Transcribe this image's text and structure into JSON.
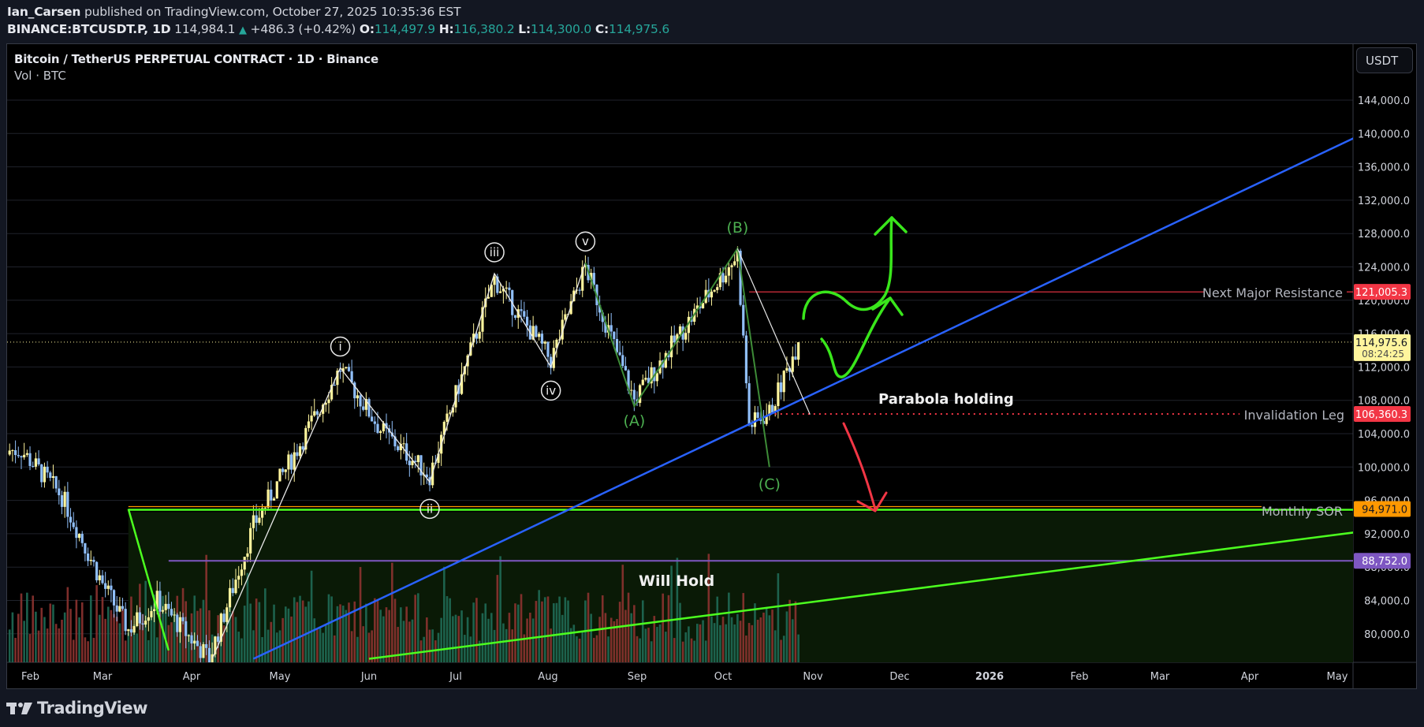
{
  "header": {
    "author": "Ian_Carsen",
    "published_text": "published on TradingView.com, October 27, 2025 10:35:36 EST",
    "symbol": "BINANCE:BTCUSDT.P, 1D",
    "last": "114,984.1",
    "change_arrow": "▲",
    "change": "+486.3 (+0.42%)",
    "o_label": "O:",
    "o": "114,497.9",
    "h_label": "H:",
    "h": "116,380.2",
    "l_label": "L:",
    "l": "114,300.0",
    "c_label": "C:",
    "c": "114,975.6"
  },
  "legend": {
    "title": "Bitcoin / TetherUS PERPETUAL CONTRACT · 1D · Binance",
    "volume": "Vol · BTC"
  },
  "price_scale": {
    "currency_button": "USDT",
    "ticks": [
      "144,000.0",
      "140,000.0",
      "136,000.0",
      "132,000.0",
      "128,000.0",
      "124,000.0",
      "120,000.0",
      "116,000.0",
      "112,000.0",
      "108,000.0",
      "104,000.0",
      "100,000.0",
      "96,000.0",
      "92,000.0",
      "88,000.0",
      "84,000.0",
      "80,000.0"
    ]
  },
  "time_scale": {
    "ticks": [
      "Feb",
      "Mar",
      "Apr",
      "May",
      "Jun",
      "Jul",
      "Aug",
      "Sep",
      "Oct",
      "Nov",
      "Dec",
      "2026",
      "Feb",
      "Mar",
      "Apr",
      "May"
    ]
  },
  "price_labels": [
    {
      "text": "121,005.3",
      "price": 121005.3,
      "bg": "#f23645",
      "fg": "#ffffff"
    },
    {
      "text": "106,360.3",
      "price": 106360.3,
      "bg": "#f23645",
      "fg": "#ffffff"
    },
    {
      "text": "94,971.0",
      "price": 94971.0,
      "bg": "#ff9800",
      "fg": "#131722"
    },
    {
      "text": "88,752.0",
      "price": 88752.0,
      "bg": "#7e57c2",
      "fg": "#ffffff"
    }
  ],
  "last_price_label": {
    "price": "114,975.6",
    "countdown": "08:24:25",
    "bg": "#fff59d",
    "fg": "#131722"
  },
  "annotations": {
    "resistance": "Next Major Resistance",
    "invalidation": "Invalidation Leg",
    "monthly_sor": "Monthly SOR",
    "parabola": "Parabola holding",
    "will_hold": "Will Hold",
    "waves_minor": [
      "i",
      "ii",
      "iii",
      "iv",
      "v"
    ],
    "waves_major": [
      "(A)",
      "(B)",
      "(C)"
    ]
  },
  "colors": {
    "up_candle": "#fff59d",
    "down_candle": "#90bff9",
    "vol_up": "#1f6a55",
    "vol_down": "#8c3330",
    "trendline_blue": "#2962ff",
    "trend_green": "#4cff1f",
    "wave_green": "#3d8b37",
    "resistance_red": "#f23645",
    "support_purple": "#7e57c2",
    "sor_orange": "#ff9800",
    "zone_fill": "#0a1a06"
  },
  "footer": {
    "brand": "TradingView"
  },
  "chart_data": {
    "type": "candlestick",
    "title": "Bitcoin / TetherUS PERPETUAL CONTRACT · 1D · Binance",
    "xlabel": "",
    "ylabel": "USDT",
    "ylim": [
      77000,
      147000
    ],
    "x_range": [
      "2025-01-28",
      "2026-05-10"
    ],
    "grid": true,
    "price_series_approx": {
      "dates": [
        "2025-02-01",
        "2025-02-15",
        "2025-03-01",
        "2025-03-10",
        "2025-03-20",
        "2025-04-07",
        "2025-04-22",
        "2025-05-10",
        "2025-05-22",
        "2025-06-05",
        "2025-06-22",
        "2025-07-14",
        "2025-08-02",
        "2025-08-14",
        "2025-08-31",
        "2025-09-18",
        "2025-10-06",
        "2025-10-10",
        "2025-10-17",
        "2025-10-27"
      ],
      "close": [
        102000,
        96500,
        86000,
        80500,
        84000,
        77000,
        93000,
        104000,
        111800,
        104500,
        99000,
        122500,
        112800,
        124000,
        108000,
        117000,
        125500,
        105000,
        106500,
        114975.6
      ]
    },
    "horizontal_levels": [
      {
        "name": "Next Major Resistance",
        "price": 121005.3
      },
      {
        "name": "Last price",
        "price": 114975.6
      },
      {
        "name": "Invalidation Leg",
        "price": 106360.3
      },
      {
        "name": "Monthly SOR",
        "price": 94971.0
      },
      {
        "name": "Support",
        "price": 88752.0
      }
    ],
    "elliott_waves": [
      {
        "label": "i",
        "date": "2025-05-22",
        "price": 111900
      },
      {
        "label": "ii",
        "date": "2025-06-22",
        "price": 98200
      },
      {
        "label": "iii",
        "date": "2025-07-14",
        "price": 123200
      },
      {
        "label": "iv",
        "date": "2025-08-02",
        "price": 112000
      },
      {
        "label": "v",
        "date": "2025-08-14",
        "price": 124500
      },
      {
        "label": "(A)",
        "date": "2025-08-31",
        "price": 107300
      },
      {
        "label": "(B)",
        "date": "2025-10-06",
        "price": 126200
      },
      {
        "label": "(C)",
        "date": "2025-10-17",
        "price": 100000
      }
    ],
    "trendlines": [
      {
        "name": "Parabola (blue)",
        "from": [
          "2025-04-22",
          77000
        ],
        "to": [
          "2026-05-10",
          140000
        ]
      },
      {
        "name": "Lower green support",
        "from": [
          "2025-06-01",
          77000
        ],
        "to": [
          "2026-05-10",
          92300
        ]
      }
    ],
    "volume_unit": "BTC"
  }
}
